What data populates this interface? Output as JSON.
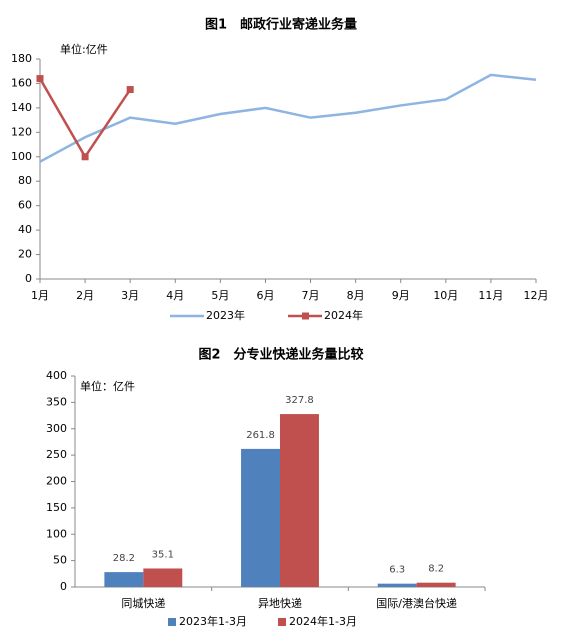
{
  "chart_data": [
    {
      "type": "line",
      "title": "图1　邮政行业寄递业务量",
      "unit_label": "单位:亿件",
      "categories": [
        "1月",
        "2月",
        "3月",
        "4月",
        "5月",
        "6月",
        "7月",
        "8月",
        "9月",
        "10月",
        "11月",
        "12月"
      ],
      "series": [
        {
          "name": "2023年",
          "color": "#8db4e2",
          "marker": "none",
          "values": [
            96,
            116,
            132,
            127,
            135,
            140,
            132,
            136,
            142,
            147,
            167,
            163
          ]
        },
        {
          "name": "2024年",
          "color": "#c0504d",
          "marker": "square",
          "values": [
            164,
            100,
            155,
            null,
            null,
            null,
            null,
            null,
            null,
            null,
            null,
            null
          ]
        }
      ],
      "ylim": [
        0,
        180
      ],
      "yticks": [
        0,
        20,
        40,
        60,
        80,
        100,
        120,
        140,
        160,
        180
      ],
      "grid": false,
      "legend": "bottom"
    },
    {
      "type": "bar",
      "title": "图2　分专业快递业务量比较",
      "unit_label": "单位：亿件",
      "categories": [
        "同城快递",
        "异地快递",
        "国际/港澳台快递"
      ],
      "series": [
        {
          "name": "2023年1-3月",
          "color": "#4f81bd",
          "values": [
            28.2,
            261.8,
            6.3
          ]
        },
        {
          "name": "2024年1-3月",
          "color": "#c0504d",
          "values": [
            35.1,
            327.8,
            8.2
          ]
        }
      ],
      "ylim": [
        0,
        400
      ],
      "yticks": [
        0,
        50,
        100,
        150,
        200,
        250,
        300,
        350,
        400
      ],
      "grid": false,
      "legend": "bottom"
    }
  ]
}
